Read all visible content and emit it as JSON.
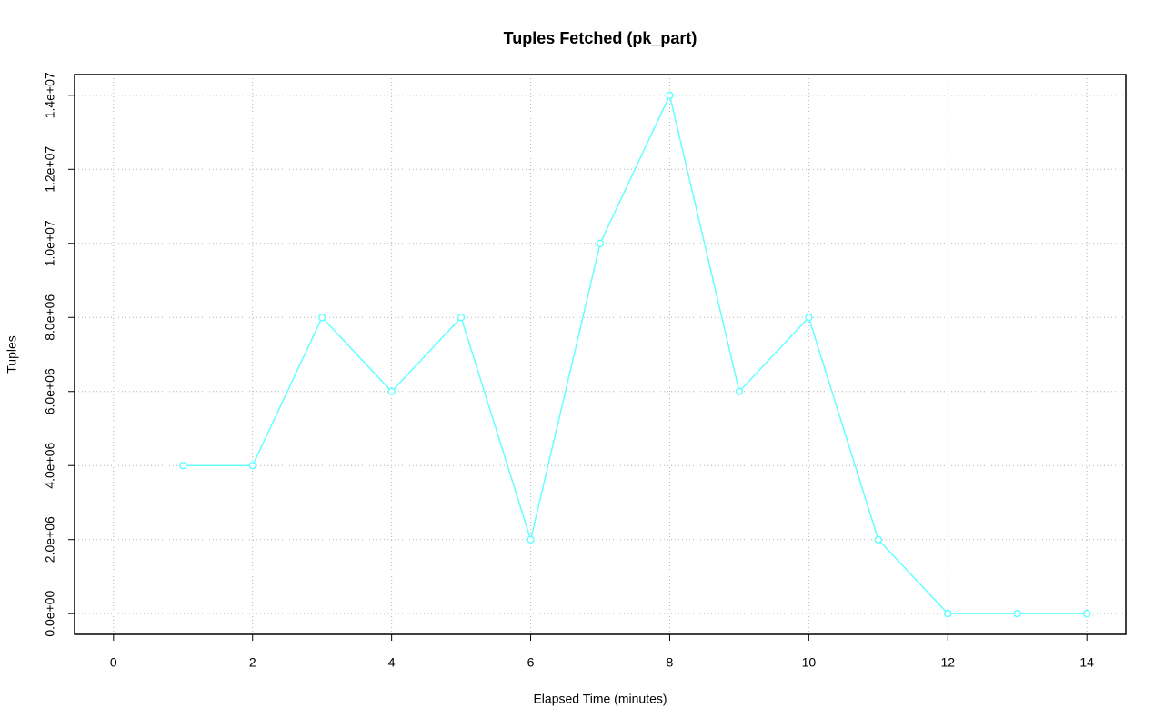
{
  "chart_data": {
    "type": "line",
    "title": "Tuples Fetched (pk_part)",
    "x_label": "Elapsed Time (minutes)",
    "y_label": "Tuples",
    "x": [
      1,
      2,
      3,
      4,
      5,
      6,
      7,
      8,
      9,
      10,
      11,
      12,
      13,
      14
    ],
    "series": [
      {
        "color": "#66ffff",
        "values": [
          4000000,
          4000000,
          8000000,
          6000000,
          8000000,
          2000000,
          10000000,
          14000000,
          6000000,
          8000000,
          2000000,
          0,
          0,
          0
        ]
      }
    ],
    "xlim": [
      -0.56,
      14.56
    ],
    "xticks": [
      0,
      2,
      4,
      6,
      8,
      10,
      12,
      14
    ],
    "ylim": [
      -560000,
      14560000
    ],
    "yticks": [
      {
        "value": 0,
        "label": "0.0e+00"
      },
      {
        "value": 2000000,
        "label": "2.0e+06"
      },
      {
        "value": 4000000,
        "label": "4.0e+06"
      },
      {
        "value": 6000000,
        "label": "6.0e+06"
      },
      {
        "value": 8000000,
        "label": "8.0e+06"
      },
      {
        "value": 10000000,
        "label": "1.0e+07"
      },
      {
        "value": 12000000,
        "label": "1.2e+07"
      },
      {
        "value": 14000000,
        "label": "1.4e+07"
      }
    ],
    "grid": true
  }
}
